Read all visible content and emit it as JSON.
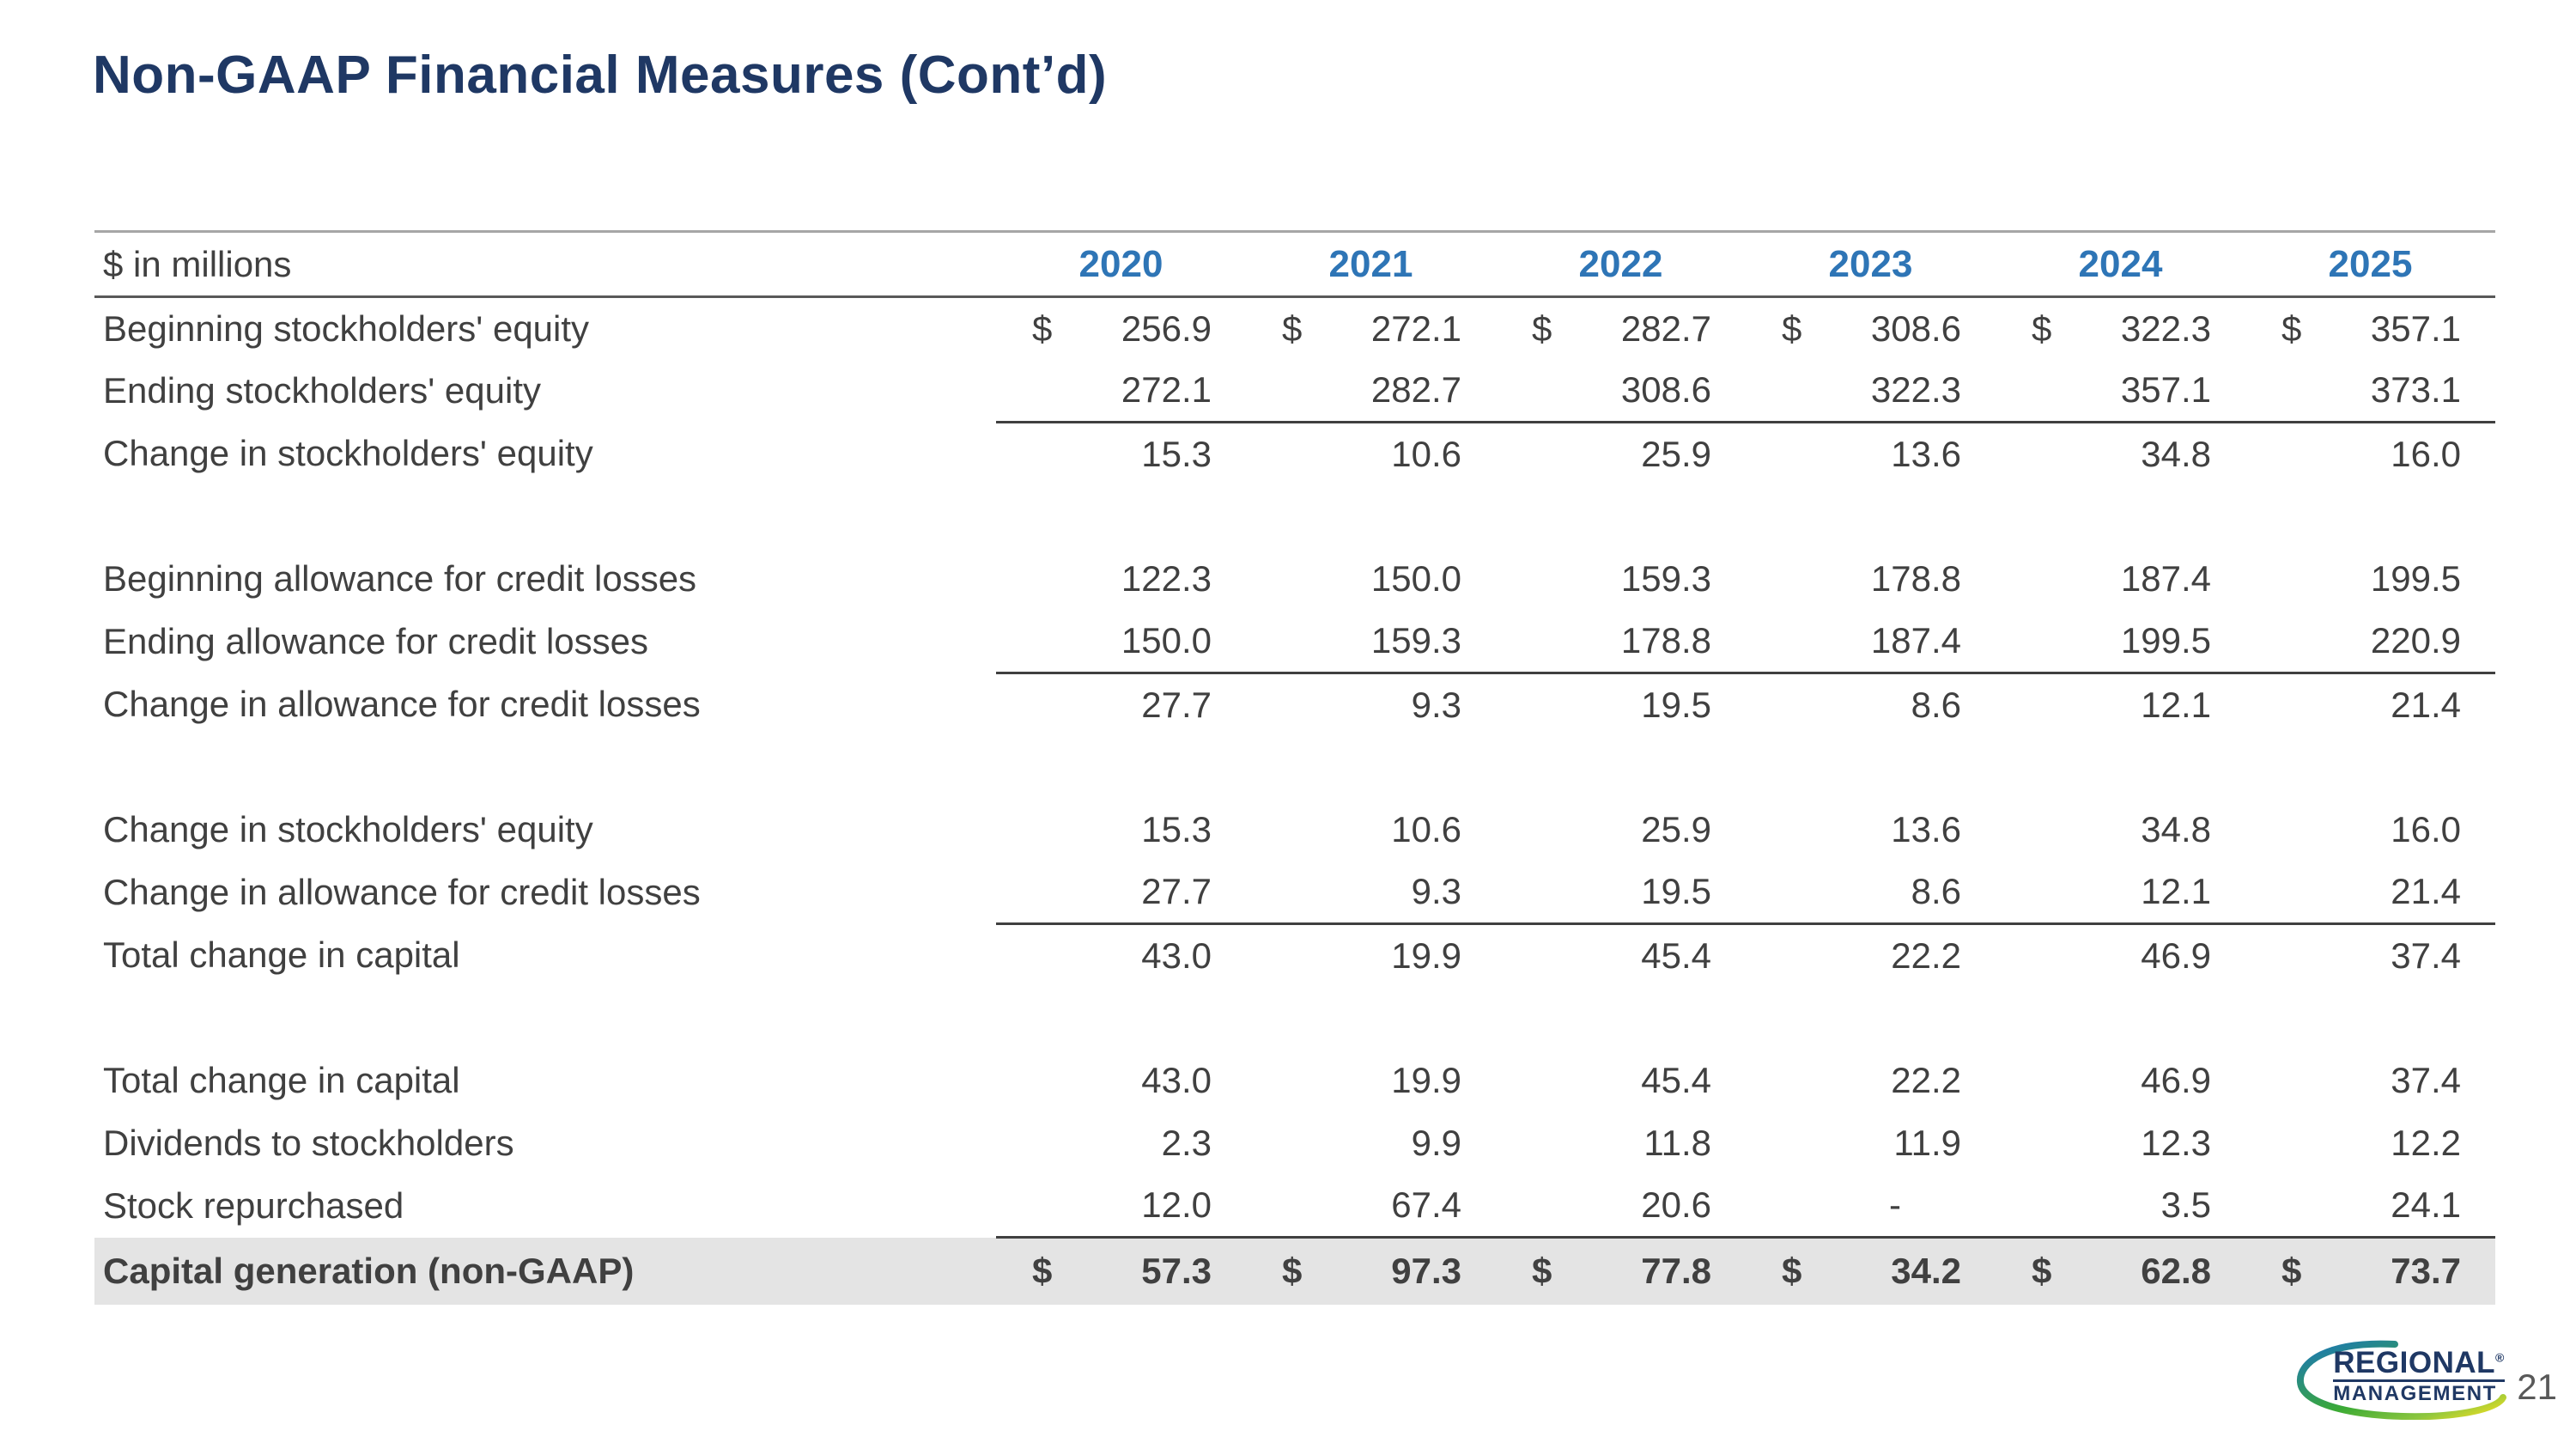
{
  "title": "Non-GAAP Financial Measures (Cont’d)",
  "page_number": "21",
  "logo": {
    "line1": "REGIONAL",
    "reg": "®",
    "line2": "MANAGEMENT"
  },
  "colors": {
    "title": "#1F3864",
    "year": "#2E75B6",
    "body": "#404040",
    "highlight": "#E4E4E4"
  },
  "table": {
    "unit_label": "$ in millions",
    "years": [
      "2020",
      "2021",
      "2022",
      "2023",
      "2024",
      "2025"
    ],
    "rows": [
      {
        "label": "Beginning stockholders' equity",
        "dollar": true,
        "underline": false,
        "total": false,
        "spacer": false,
        "values": [
          "256.9",
          "272.1",
          "282.7",
          "308.6",
          "322.3",
          "357.1"
        ]
      },
      {
        "label": "Ending stockholders' equity",
        "dollar": false,
        "underline": true,
        "total": false,
        "spacer": false,
        "values": [
          "272.1",
          "282.7",
          "308.6",
          "322.3",
          "357.1",
          "373.1"
        ]
      },
      {
        "label": "Change in stockholders' equity",
        "dollar": false,
        "underline": false,
        "total": false,
        "spacer": false,
        "values": [
          "15.3",
          "10.6",
          "25.9",
          "13.6",
          "34.8",
          "16.0"
        ]
      },
      {
        "spacer": true
      },
      {
        "label": "Beginning allowance for credit losses",
        "dollar": false,
        "underline": false,
        "total": false,
        "spacer": false,
        "values": [
          "122.3",
          "150.0",
          "159.3",
          "178.8",
          "187.4",
          "199.5"
        ]
      },
      {
        "label": "Ending allowance for credit losses",
        "dollar": false,
        "underline": true,
        "total": false,
        "spacer": false,
        "values": [
          "150.0",
          "159.3",
          "178.8",
          "187.4",
          "199.5",
          "220.9"
        ]
      },
      {
        "label": "Change in allowance for credit losses",
        "dollar": false,
        "underline": false,
        "total": false,
        "spacer": false,
        "values": [
          "27.7",
          "9.3",
          "19.5",
          "8.6",
          "12.1",
          "21.4"
        ]
      },
      {
        "spacer": true
      },
      {
        "label": "Change in stockholders' equity",
        "dollar": false,
        "underline": false,
        "total": false,
        "spacer": false,
        "values": [
          "15.3",
          "10.6",
          "25.9",
          "13.6",
          "34.8",
          "16.0"
        ]
      },
      {
        "label": "Change in allowance for credit losses",
        "dollar": false,
        "underline": true,
        "total": false,
        "spacer": false,
        "values": [
          "27.7",
          "9.3",
          "19.5",
          "8.6",
          "12.1",
          "21.4"
        ]
      },
      {
        "label": "Total change in capital",
        "dollar": false,
        "underline": false,
        "total": false,
        "spacer": false,
        "values": [
          "43.0",
          "19.9",
          "45.4",
          "22.2",
          "46.9",
          "37.4"
        ]
      },
      {
        "spacer": true
      },
      {
        "label": "Total change in capital",
        "dollar": false,
        "underline": false,
        "total": false,
        "spacer": false,
        "values": [
          "43.0",
          "19.9",
          "45.4",
          "22.2",
          "46.9",
          "37.4"
        ]
      },
      {
        "label": "Dividends to stockholders",
        "dollar": false,
        "underline": false,
        "total": false,
        "spacer": false,
        "values": [
          "2.3",
          "9.9",
          "11.8",
          "11.9",
          "12.3",
          "12.2"
        ]
      },
      {
        "label": "Stock repurchased",
        "dollar": false,
        "underline": true,
        "total": false,
        "spacer": false,
        "values": [
          "12.0",
          "67.4",
          "20.6",
          "-",
          "3.5",
          "24.1"
        ]
      },
      {
        "label": "Capital generation (non-GAAP)",
        "dollar": true,
        "underline": false,
        "total": true,
        "spacer": false,
        "values": [
          "57.3",
          "97.3",
          "77.8",
          "34.2",
          "62.8",
          "73.7"
        ]
      }
    ]
  }
}
